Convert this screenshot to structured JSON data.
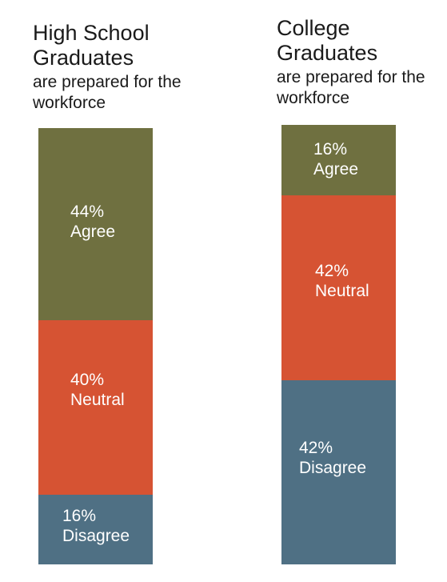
{
  "colors": {
    "agree": "#6f7040",
    "neutral": "#d65333",
    "disagree": "#4f7084"
  },
  "chart_data": [
    {
      "type": "bar",
      "stacked": true,
      "title": "High School Graduates",
      "subtitle": "are prepared for the workforce",
      "categories": [
        "Agree",
        "Neutral",
        "Disagree"
      ],
      "values": [
        44,
        40,
        16
      ],
      "value_labels": [
        "44%",
        "40%",
        "16%"
      ],
      "ylim": [
        0,
        100
      ]
    },
    {
      "type": "bar",
      "stacked": true,
      "title": "College Graduates",
      "subtitle": "are prepared for the workforce",
      "categories": [
        "Agree",
        "Neutral",
        "Disagree"
      ],
      "values": [
        16,
        42,
        42
      ],
      "value_labels": [
        "16%",
        "42%",
        "42%"
      ],
      "ylim": [
        0,
        100
      ]
    }
  ]
}
